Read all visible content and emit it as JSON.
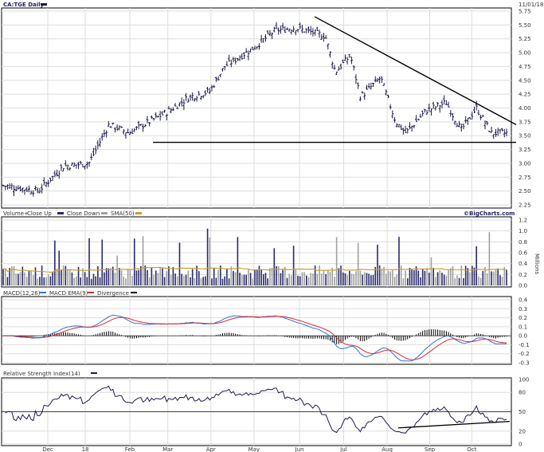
{
  "chart_data": [
    {
      "type": "candlestick",
      "panel": "price",
      "title": "CA:TGE Daily",
      "date": "11/01/18",
      "y_ticks": [
        "5.75",
        "5.50",
        "5.25",
        "5.00",
        "4.75",
        "4.50",
        "4.25",
        "4.00",
        "3.75",
        "3.50",
        "3.25",
        "3.00",
        "2.75",
        "2.50",
        "2.25"
      ],
      "ylim": [
        2.25,
        5.75
      ],
      "x_ticks": [
        "Dec",
        "18",
        "Feb",
        "Mar",
        "Apr",
        "May",
        "Jun",
        "Jul",
        "Aug",
        "Sep",
        "Oct"
      ],
      "monthly_approx_close": [
        {
          "x": "Dec",
          "y": 2.55
        },
        {
          "x": "18",
          "y": 2.95
        },
        {
          "x": "Feb",
          "y": 3.7
        },
        {
          "x": "Mar",
          "y": 3.95
        },
        {
          "x": "Apr",
          "y": 4.4
        },
        {
          "x": "May",
          "y": 5.1
        },
        {
          "x": "Jun",
          "y": 5.4
        },
        {
          "x": "Jul",
          "y": 4.65
        },
        {
          "x": "Aug",
          "y": 3.8
        },
        {
          "x": "Sep",
          "y": 3.85
        },
        {
          "x": "Oct",
          "y": 3.9
        },
        {
          "x": "Nov",
          "y": 3.5
        }
      ],
      "trendlines": [
        {
          "name": "resistance",
          "from": {
            "x": "Jun",
            "y": 5.65
          },
          "to": {
            "x": "Nov",
            "y": 3.7
          }
        },
        {
          "name": "support",
          "from": {
            "x": "Feb",
            "y": 3.38
          },
          "to": {
            "x": "Nov",
            "y": 3.38
          }
        }
      ]
    },
    {
      "type": "bar",
      "panel": "volume",
      "legend": [
        "Volume+",
        "Close Up",
        "Close Down",
        "SMA(50)"
      ],
      "source": "©BigCharts.com",
      "y_ticks": [
        "1.2",
        "1.0",
        "0.8",
        "0.6",
        "0.4",
        "0.2",
        "0.0"
      ],
      "ylabel": "Millions",
      "ylim": [
        0,
        1.2
      ],
      "sma50_level": 0.27
    },
    {
      "type": "line",
      "panel": "macd",
      "legend": [
        "MACD(12,26)",
        "MACD EMA(9)",
        "Divergence"
      ],
      "y_ticks": [
        "0.4",
        "0.3",
        "0.2",
        "0.1",
        "0.0",
        "-0.1",
        "-0.2",
        "-0.3"
      ],
      "ylim": [
        -0.3,
        0.4
      ]
    },
    {
      "type": "line",
      "panel": "rsi",
      "legend": [
        "Relative Strength Index(14)"
      ],
      "y_ticks": [
        "100",
        "80",
        "50",
        "20",
        "0"
      ],
      "ylim": [
        0,
        100
      ],
      "reference_line": 50
    }
  ],
  "colors": {
    "candle": "#1a1a4d",
    "vol_up": "#2a2a6a",
    "vol_down": "#a0a0a0",
    "sma": "#c8a030",
    "macd": "#3b6fd6",
    "ema": "#d03030",
    "divergence": "#000000",
    "rsi": "#1a1a4d",
    "trend": "#000000"
  }
}
